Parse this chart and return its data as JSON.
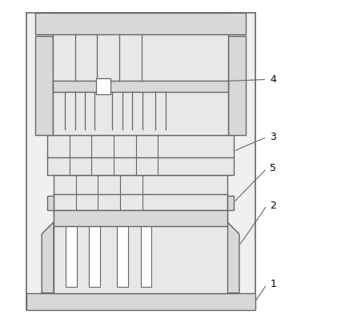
{
  "fig_bg": "#ffffff",
  "lc": "#666666",
  "lw": 1.0,
  "fill_light": "#e8e8e8",
  "fill_mid": "#d8d8d8",
  "fill_white": "#ffffff",
  "outer_lw": 1.2
}
